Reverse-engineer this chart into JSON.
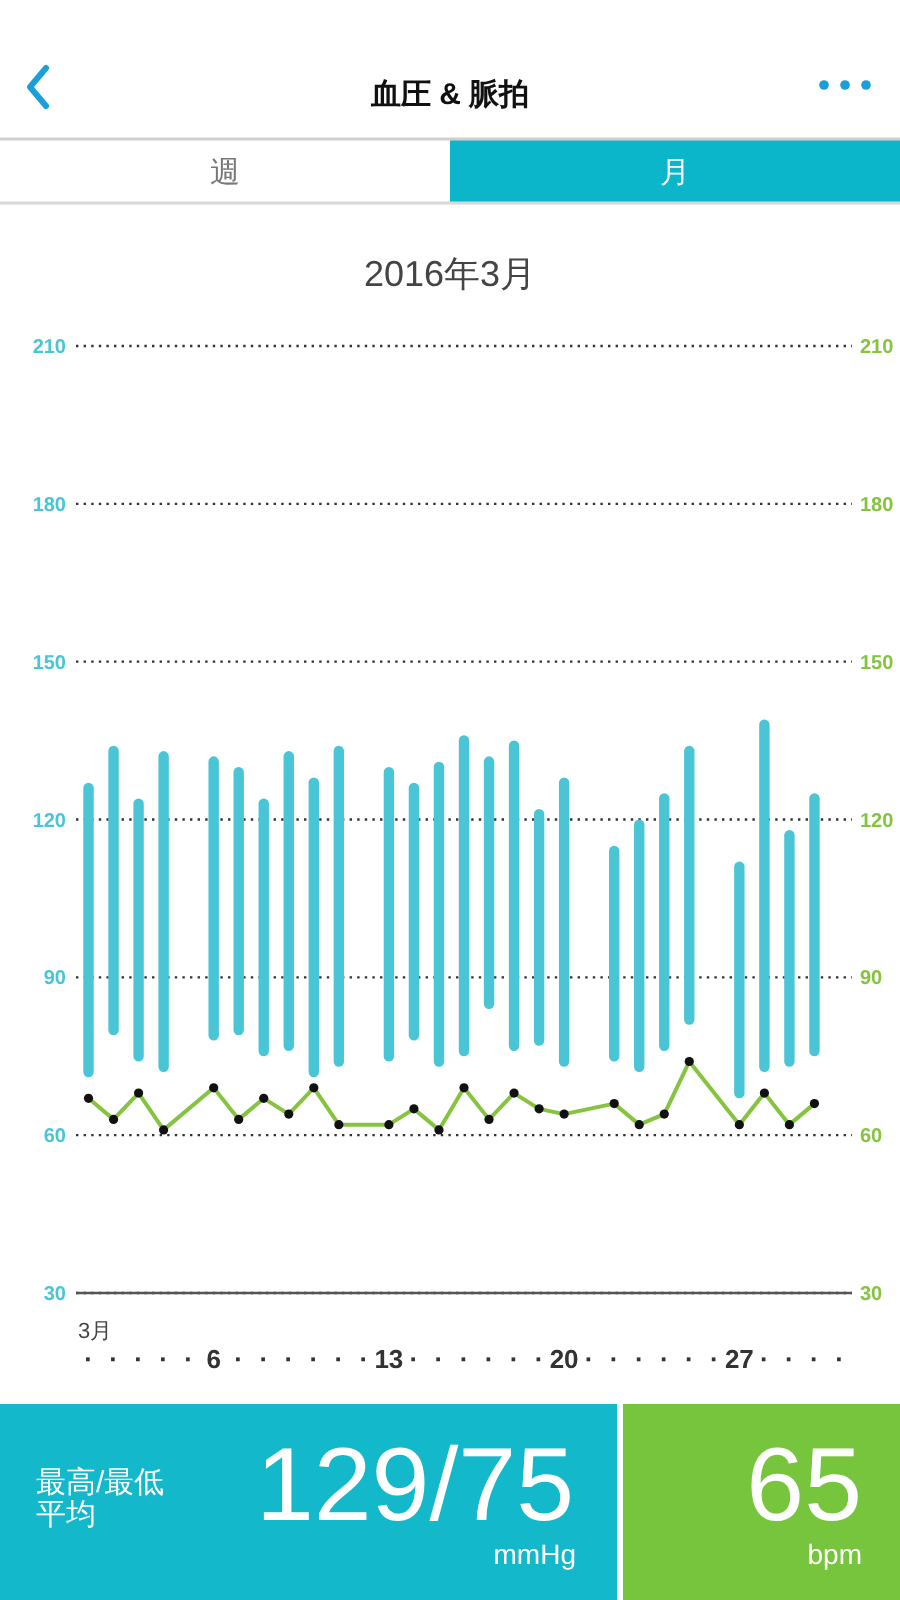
{
  "chart_data": [
    {
      "type": "bar",
      "title": "血圧 & 脈拍",
      "subtitle": "2016年3月",
      "annotations": [
        "週",
        "月"
      ],
      "xlabel": "3月",
      "categories": [
        "·",
        "·",
        "·",
        "·",
        "·",
        "6",
        "·",
        "·",
        "·",
        "·",
        "·",
        "·",
        "13",
        "·",
        "·",
        "·",
        "·",
        "·",
        "·",
        "20",
        "·",
        "·",
        "·",
        "·",
        "·",
        "·",
        "27",
        "·",
        "·",
        "·",
        "·"
      ],
      "ylim": [
        30,
        210
      ],
      "yticks": [
        30,
        60,
        90,
        120,
        150,
        180,
        210
      ],
      "y2lim": [
        30,
        210
      ],
      "y2ticks": [
        30,
        60,
        90,
        120,
        150,
        180,
        210
      ],
      "grid": "y",
      "marker": "circle",
      "series": [
        {
          "type": "bar",
          "color": "#4ac5d5",
          "base": [
            71,
            79,
            74,
            72,
            null,
            78,
            79,
            75,
            76,
            71,
            73,
            null,
            74,
            78,
            73,
            75,
            84,
            76,
            77,
            73,
            null,
            74,
            72,
            76,
            81,
            null,
            67,
            72,
            73,
            75,
            null
          ],
          "values": [
            56,
            55,
            50,
            61,
            null,
            54,
            51,
            49,
            57,
            57,
            61,
            null,
            56,
            49,
            58,
            61,
            48,
            59,
            45,
            55,
            null,
            41,
            48,
            49,
            53,
            null,
            45,
            67,
            45,
            50,
            null
          ]
        },
        {
          "type": "line",
          "color": "#86c440",
          "axis": "y2",
          "values": [
            67,
            63,
            68,
            61,
            null,
            69,
            63,
            67,
            64,
            69,
            62,
            null,
            62,
            65,
            61,
            69,
            63,
            68,
            65,
            64,
            null,
            66,
            62,
            64,
            74,
            null,
            62,
            68,
            62,
            66,
            null
          ]
        }
      ]
    },
    {
      "type": "other",
      "annotations": [
        "最高/最低平均",
        "129/75",
        "mmHg",
        "65",
        "bpm"
      ]
    }
  ]
}
